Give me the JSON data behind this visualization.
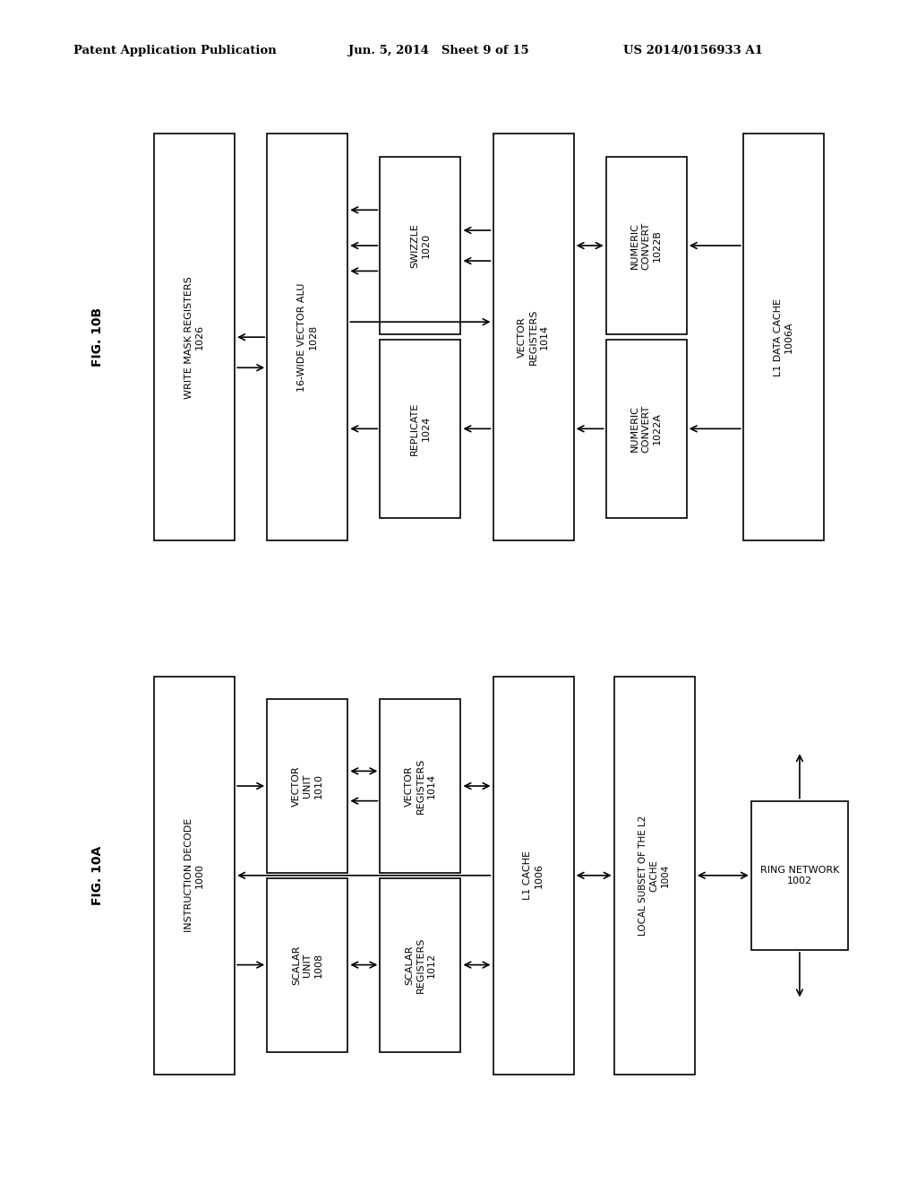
{
  "header_left": "Patent Application Publication",
  "header_mid": "Jun. 5, 2014   Sheet 9 of 15",
  "header_right": "US 2014/0156933 A1",
  "bg_color": "#ffffff",
  "fig10b_label": "FIG. 10B",
  "fig10a_label": "FIG. 10A"
}
